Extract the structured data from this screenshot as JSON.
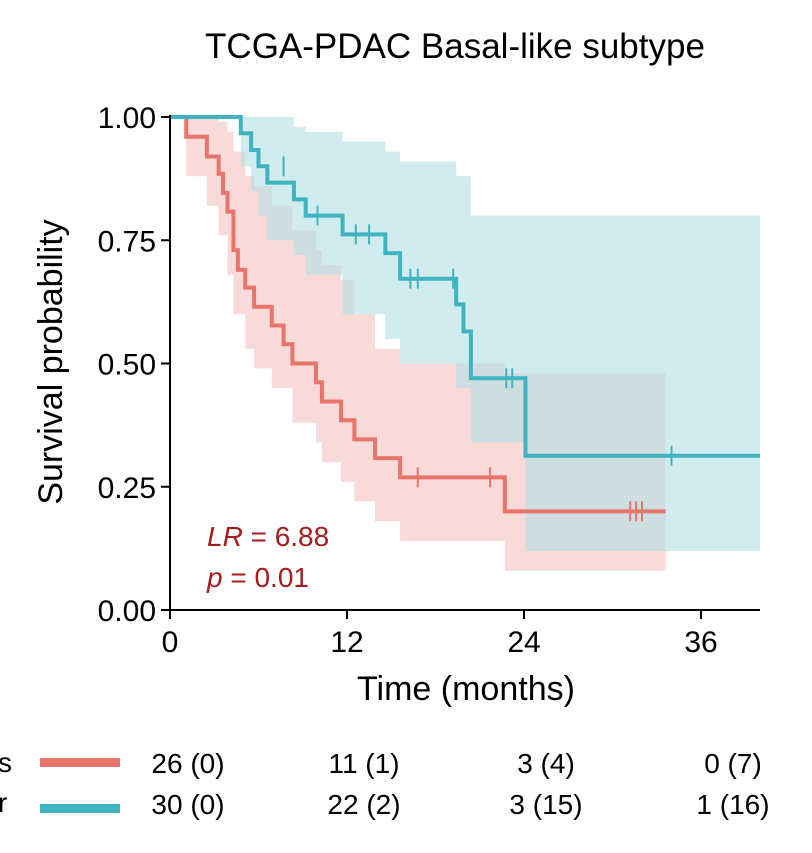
{
  "colors": {
    "series_1": "#e8756c",
    "series_1_band": "#f4c2bf",
    "series_2": "#3fb3bf",
    "series_2_band": "#b3e0e4",
    "annotation": "#a51c1c",
    "axis": "#000000"
  },
  "chart_data": {
    "type": "line",
    "subtype": "kaplan-meier",
    "title": "TCGA-PDAC Basal-like subtype",
    "xlabel": "Time (months)",
    "ylabel": "Survival probability",
    "xlim": [
      0,
      40
    ],
    "ylim": [
      0,
      1
    ],
    "x_ticks": [
      "0",
      "12",
      "24",
      "36"
    ],
    "x_tick_values": [
      0,
      12,
      24,
      36
    ],
    "y_ticks": [
      "0.00",
      "0.25",
      "0.50",
      "0.75",
      "1.00"
    ],
    "y_tick_values": [
      0,
      0.25,
      0.5,
      0.75,
      1
    ],
    "grid": false,
    "series": [
      {
        "name": "series-1",
        "legend_label": "s",
        "color": "#e8756c",
        "band_color": "#f4c2bf",
        "steps": [
          [
            0,
            1.0
          ],
          [
            1.1,
            0.96
          ],
          [
            2.5,
            0.92
          ],
          [
            3.3,
            0.885
          ],
          [
            3.6,
            0.846
          ],
          [
            3.9,
            0.808
          ],
          [
            4.3,
            0.73
          ],
          [
            4.6,
            0.69
          ],
          [
            5.1,
            0.654
          ],
          [
            5.7,
            0.615
          ],
          [
            6.9,
            0.577
          ],
          [
            7.7,
            0.539
          ],
          [
            8.3,
            0.5
          ],
          [
            9.9,
            0.462
          ],
          [
            10.3,
            0.423
          ],
          [
            11.6,
            0.385
          ],
          [
            12.5,
            0.346
          ],
          [
            13.9,
            0.308
          ],
          [
            15.6,
            0.269
          ],
          [
            22.4,
            0.269
          ],
          [
            22.7,
            0.2
          ],
          [
            33.6,
            0.2
          ]
        ],
        "censored": [
          [
            16.8,
            0.269
          ],
          [
            21.7,
            0.269
          ],
          [
            31.2,
            0.2
          ],
          [
            31.6,
            0.2
          ],
          [
            32.0,
            0.2
          ]
        ],
        "ci": [
          [
            0,
            1.0,
            1.0
          ],
          [
            1.1,
            0.88,
            1.0
          ],
          [
            2.5,
            0.82,
            1.0
          ],
          [
            3.3,
            0.76,
            0.99
          ],
          [
            3.9,
            0.68,
            0.97
          ],
          [
            4.3,
            0.6,
            0.93
          ],
          [
            5.1,
            0.53,
            0.88
          ],
          [
            5.7,
            0.49,
            0.86
          ],
          [
            6.9,
            0.45,
            0.82
          ],
          [
            8.3,
            0.38,
            0.77
          ],
          [
            9.9,
            0.34,
            0.73
          ],
          [
            10.3,
            0.3,
            0.7
          ],
          [
            11.6,
            0.26,
            0.67
          ],
          [
            12.5,
            0.22,
            0.6
          ],
          [
            13.9,
            0.18,
            0.53
          ],
          [
            15.6,
            0.14,
            0.5
          ],
          [
            22.7,
            0.08,
            0.48
          ],
          [
            33.6,
            0.08,
            0.48
          ]
        ]
      },
      {
        "name": "series-2",
        "legend_label": "r",
        "color": "#3fb3bf",
        "band_color": "#b3e0e4",
        "steps": [
          [
            0,
            1.0
          ],
          [
            4.8,
            0.967
          ],
          [
            5.5,
            0.933
          ],
          [
            6.0,
            0.9
          ],
          [
            6.6,
            0.867
          ],
          [
            8.4,
            0.833
          ],
          [
            9.2,
            0.8
          ],
          [
            11.7,
            0.762
          ],
          [
            14.6,
            0.724
          ],
          [
            15.6,
            0.672
          ],
          [
            19.4,
            0.62
          ],
          [
            19.9,
            0.565
          ],
          [
            20.4,
            0.47
          ],
          [
            24.1,
            0.313
          ],
          [
            40,
            0.313
          ]
        ],
        "censored": [
          [
            7.7,
            0.9
          ],
          [
            10.0,
            0.8
          ],
          [
            12.6,
            0.762
          ],
          [
            13.5,
            0.762
          ],
          [
            16.3,
            0.672
          ],
          [
            16.8,
            0.672
          ],
          [
            19.2,
            0.672
          ],
          [
            22.8,
            0.47
          ],
          [
            23.2,
            0.47
          ],
          [
            34.0,
            0.313
          ]
        ],
        "ci": [
          [
            0,
            1.0,
            1.0
          ],
          [
            4.8,
            0.9,
            1.0
          ],
          [
            5.5,
            0.85,
            1.0
          ],
          [
            6.0,
            0.8,
            1.0
          ],
          [
            6.6,
            0.75,
            1.0
          ],
          [
            8.4,
            0.72,
            0.98
          ],
          [
            9.2,
            0.68,
            0.97
          ],
          [
            11.7,
            0.6,
            0.95
          ],
          [
            14.6,
            0.55,
            0.93
          ],
          [
            15.6,
            0.5,
            0.91
          ],
          [
            19.4,
            0.45,
            0.88
          ],
          [
            20.4,
            0.34,
            0.8
          ],
          [
            24.1,
            0.12,
            0.8
          ],
          [
            40,
            0.12,
            0.8
          ]
        ]
      }
    ],
    "annotation": {
      "stat_label": "LR",
      "stat_rest": " = 6.88",
      "p_label": "p",
      "p_rest": " = 0.01"
    },
    "risk_table": [
      {
        "counts": [
          "26 (0)",
          "11 (1)",
          "3 (4)",
          "0 (7)"
        ]
      },
      {
        "counts": [
          "30 (0)",
          "22 (2)",
          "3 (15)",
          "1 (16)"
        ]
      }
    ]
  }
}
